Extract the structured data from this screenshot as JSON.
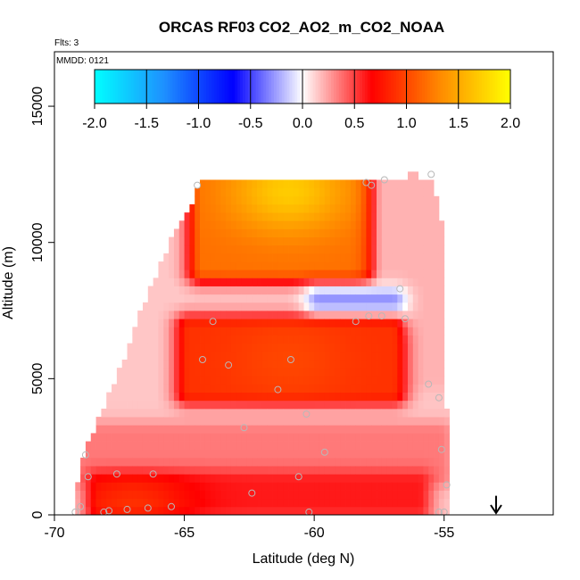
{
  "chart_data": {
    "type": "heatmap",
    "title": "ORCAS RF03 CO2_AO2_m_CO2_NOAA",
    "flights_label": "Flts: 3",
    "date_label": "MMDD: 0121",
    "xlabel": "Latitude (deg N)",
    "ylabel": "Altitude (m)",
    "xlim": [
      -70,
      -50.8
    ],
    "ylim": [
      0,
      17000
    ],
    "x_ticks": [
      -70,
      -65,
      -60,
      -55
    ],
    "y_ticks": [
      0,
      5000,
      10000,
      15000
    ],
    "colorbar": {
      "range": [
        -2.0,
        2.0
      ],
      "ticks": [
        "-2.0",
        "-1.5",
        "-1.0",
        "-0.5",
        "0.0",
        "0.5",
        "1.0",
        "1.5",
        "2.0"
      ],
      "colors": [
        "#00ffff",
        "#1e90ff",
        "#0000ff",
        "#ffffff",
        "#ff0000",
        "#ff8c00",
        "#ffff00"
      ]
    },
    "domain_outline": [
      [
        -69.2,
        0
      ],
      [
        -69.2,
        500
      ],
      [
        -69.0,
        2000
      ],
      [
        -67.6,
        5000
      ],
      [
        -66.7,
        7500
      ],
      [
        -65.3,
        10500
      ],
      [
        -64.3,
        12200
      ],
      [
        -57.4,
        12200
      ],
      [
        -56.9,
        12300
      ],
      [
        -56.1,
        12500
      ],
      [
        -55.4,
        12300
      ],
      [
        -54.9,
        10000
      ],
      [
        -55.0,
        7000
      ],
      [
        -54.9,
        4000
      ],
      [
        -54.8,
        1500
      ],
      [
        -54.8,
        0
      ]
    ],
    "features": [
      {
        "name": "upper-left-arm",
        "lat": [
          -66.7,
          -64.6
        ],
        "alt": [
          7000,
          12200
        ],
        "value": 0.15
      },
      {
        "name": "upper-high-anomaly",
        "lat": [
          -64.3,
          -57.9
        ],
        "alt": [
          9000,
          12200
        ],
        "value": 1.2,
        "peak": 1.7,
        "peak_lat": -61.0,
        "peak_alt": 11900
      },
      {
        "name": "right-column",
        "lat": [
          -57.3,
          -54.9
        ],
        "alt": [
          5000,
          12500
        ],
        "value": 0.2
      },
      {
        "name": "negative-pocket",
        "lat": [
          -59.8,
          -57.0
        ],
        "alt": [
          7200,
          7900
        ],
        "value": -0.3
      },
      {
        "name": "mid-level-anomaly",
        "lat": [
          -64.8,
          -57.0
        ],
        "alt": [
          4500,
          6900
        ],
        "value": 0.9,
        "peak": 1.0,
        "peak_lat": -61.0,
        "peak_alt": 5700
      },
      {
        "name": "lower-band",
        "lat": [
          -68.8,
          -55.2
        ],
        "alt": [
          1500,
          3000
        ],
        "value": 0.35
      },
      {
        "name": "near-surface-band",
        "lat": [
          -68.3,
          -56.0
        ],
        "alt": [
          300,
          1200
        ],
        "value": 0.6,
        "peak": 0.9,
        "peak_lat": -67.0,
        "peak_alt": 200
      }
    ],
    "sample_points": [
      {
        "lat": -68.1,
        "alt": 100
      },
      {
        "lat": -67.9,
        "alt": 150
      },
      {
        "lat": -67.2,
        "alt": 200
      },
      {
        "lat": -66.4,
        "alt": 250
      },
      {
        "lat": -66.2,
        "alt": 1500
      },
      {
        "lat": -65.5,
        "alt": 300
      },
      {
        "lat": -67.6,
        "alt": 1500
      },
      {
        "lat": -68.7,
        "alt": 1400
      },
      {
        "lat": -68.8,
        "alt": 2200
      },
      {
        "lat": -69.2,
        "alt": 100
      },
      {
        "lat": -69.0,
        "alt": 300
      },
      {
        "lat": -64.5,
        "alt": 12100
      },
      {
        "lat": -63.9,
        "alt": 7100
      },
      {
        "lat": -64.3,
        "alt": 5700
      },
      {
        "lat": -63.3,
        "alt": 5500
      },
      {
        "lat": -62.7,
        "alt": 3200
      },
      {
        "lat": -61.4,
        "alt": 4600
      },
      {
        "lat": -60.9,
        "alt": 5700
      },
      {
        "lat": -60.3,
        "alt": 3700
      },
      {
        "lat": -60.6,
        "alt": 1400
      },
      {
        "lat": -60.2,
        "alt": 100
      },
      {
        "lat": -62.4,
        "alt": 800
      },
      {
        "lat": -59.6,
        "alt": 2300
      },
      {
        "lat": -58.4,
        "alt": 7100
      },
      {
        "lat": -57.9,
        "alt": 7300
      },
      {
        "lat": -57.4,
        "alt": 7300
      },
      {
        "lat": -58.0,
        "alt": 12200
      },
      {
        "lat": -57.8,
        "alt": 12100
      },
      {
        "lat": -57.3,
        "alt": 12300
      },
      {
        "lat": -55.5,
        "alt": 12500
      },
      {
        "lat": -56.7,
        "alt": 8300
      },
      {
        "lat": -56.5,
        "alt": 7200
      },
      {
        "lat": -55.6,
        "alt": 4800
      },
      {
        "lat": -55.2,
        "alt": 4300
      },
      {
        "lat": -55.1,
        "alt": 2400
      },
      {
        "lat": -54.9,
        "alt": 1100
      },
      {
        "lat": -55.2,
        "alt": 100
      },
      {
        "lat": -55.0,
        "alt": 100
      }
    ],
    "marker": {
      "type": "arrow-down",
      "lat": -53.0,
      "alt": 700
    }
  }
}
